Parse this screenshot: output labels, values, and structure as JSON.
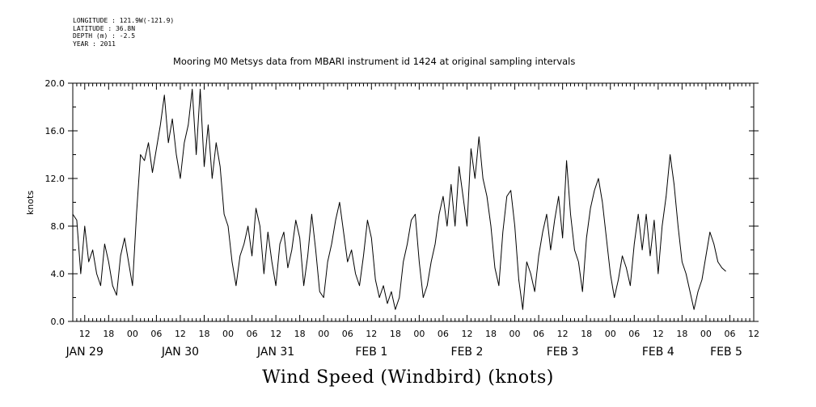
{
  "header": {
    "longitude": "LONGITUDE : 121.9W(-121.9)",
    "latitude": "LATITUDE : 36.8N",
    "depth": "DEPTH (m) : -2.5",
    "year": "YEAR : 2011"
  },
  "chart_data": {
    "type": "line",
    "title": "Mooring M0 Metsys data from MBARI instrument id 1424 at original sampling intervals",
    "xlabel": "Wind Speed (Windbird) (knots)",
    "ylabel": "knots",
    "ylim": [
      0,
      20
    ],
    "yticks": [
      "0.0",
      "4.0",
      "8.0",
      "12.0",
      "16.0",
      "20.0"
    ],
    "xlim_hours": [
      "JAN 29 09:00",
      "FEB 5 12:00"
    ],
    "hour_tick_labels": [
      "12",
      "18",
      "00",
      "06",
      "12",
      "18",
      "00",
      "06",
      "12",
      "18",
      "00",
      "06",
      "12",
      "18",
      "00",
      "06",
      "12",
      "18",
      "00",
      "06",
      "12",
      "18",
      "00",
      "06",
      "12",
      "18",
      "00",
      "06",
      "12",
      "18",
      "00",
      "06"
    ],
    "day_labels": [
      "JAN 29",
      "JAN 30",
      "JAN 31",
      "FEB  1",
      "FEB  2",
      "FEB  3",
      "FEB  4",
      "FEB  5"
    ],
    "grid": false,
    "series": [
      {
        "color": "#000000",
        "points": [
          [
            "JAN 29 09",
            9.0
          ],
          [
            "JAN 29 10",
            8.5
          ],
          [
            "JAN 29 11",
            4.0
          ],
          [
            "JAN 29 12",
            8.0
          ],
          [
            "JAN 29 13",
            5.0
          ],
          [
            "JAN 29 14",
            6.0
          ],
          [
            "JAN 29 15",
            4.0
          ],
          [
            "JAN 29 16",
            3.0
          ],
          [
            "JAN 29 17",
            6.5
          ],
          [
            "JAN 29 18",
            5.0
          ],
          [
            "JAN 29 19",
            3.0
          ],
          [
            "JAN 29 20",
            2.2
          ],
          [
            "JAN 29 21",
            5.5
          ],
          [
            "JAN 29 22",
            7.0
          ],
          [
            "JAN 29 23",
            5.0
          ],
          [
            "JAN 30 00",
            3.0
          ],
          [
            "JAN 30 01",
            9.0
          ],
          [
            "JAN 30 02",
            14.0
          ],
          [
            "JAN 30 03",
            13.5
          ],
          [
            "JAN 30 04",
            15.0
          ],
          [
            "JAN 30 05",
            12.5
          ],
          [
            "JAN 30 06",
            14.5
          ],
          [
            "JAN 30 07",
            16.5
          ],
          [
            "JAN 30 08",
            19.0
          ],
          [
            "JAN 30 09",
            15.0
          ],
          [
            "JAN 30 10",
            17.0
          ],
          [
            "JAN 30 11",
            14.0
          ],
          [
            "JAN 30 12",
            12.0
          ],
          [
            "JAN 30 13",
            15.0
          ],
          [
            "JAN 30 14",
            16.5
          ],
          [
            "JAN 30 15",
            19.5
          ],
          [
            "JAN 30 16",
            14.0
          ],
          [
            "JAN 30 17",
            19.5
          ],
          [
            "JAN 30 18",
            13.0
          ],
          [
            "JAN 30 19",
            16.5
          ],
          [
            "JAN 30 20",
            12.0
          ],
          [
            "JAN 30 21",
            15.0
          ],
          [
            "JAN 30 22",
            13.0
          ],
          [
            "JAN 30 23",
            9.0
          ],
          [
            "JAN 31 00",
            8.0
          ],
          [
            "JAN 31 01",
            5.0
          ],
          [
            "JAN 31 02",
            3.0
          ],
          [
            "JAN 31 03",
            5.5
          ],
          [
            "JAN 31 04",
            6.5
          ],
          [
            "JAN 31 05",
            8.0
          ],
          [
            "JAN 31 06",
            5.5
          ],
          [
            "JAN 31 07",
            9.5
          ],
          [
            "JAN 31 08",
            8.0
          ],
          [
            "JAN 31 09",
            4.0
          ],
          [
            "JAN 31 10",
            7.5
          ],
          [
            "JAN 31 11",
            5.0
          ],
          [
            "JAN 31 12",
            3.0
          ],
          [
            "JAN 31 13",
            6.5
          ],
          [
            "JAN 31 14",
            7.5
          ],
          [
            "JAN 31 15",
            4.5
          ],
          [
            "JAN 31 16",
            6.0
          ],
          [
            "JAN 31 17",
            8.5
          ],
          [
            "JAN 31 18",
            7.0
          ],
          [
            "JAN 31 19",
            3.0
          ],
          [
            "JAN 31 20",
            5.5
          ],
          [
            "JAN 31 21",
            9.0
          ],
          [
            "JAN 31 22",
            6.0
          ],
          [
            "JAN 31 23",
            2.5
          ],
          [
            "FEB 1 00",
            2.0
          ],
          [
            "FEB 1 01",
            5.0
          ],
          [
            "FEB 1 02",
            6.5
          ],
          [
            "FEB 1 03",
            8.5
          ],
          [
            "FEB 1 04",
            10.0
          ],
          [
            "FEB 1 05",
            7.5
          ],
          [
            "FEB 1 06",
            5.0
          ],
          [
            "FEB 1 07",
            6.0
          ],
          [
            "FEB 1 08",
            4.0
          ],
          [
            "FEB 1 09",
            3.0
          ],
          [
            "FEB 1 10",
            5.5
          ],
          [
            "FEB 1 11",
            8.5
          ],
          [
            "FEB 1 12",
            7.0
          ],
          [
            "FEB 1 13",
            3.5
          ],
          [
            "FEB 1 14",
            2.0
          ],
          [
            "FEB 1 15",
            3.0
          ],
          [
            "FEB 1 16",
            1.5
          ],
          [
            "FEB 1 17",
            2.5
          ],
          [
            "FEB 1 18",
            1.0
          ],
          [
            "FEB 1 19",
            2.0
          ],
          [
            "FEB 1 20",
            5.0
          ],
          [
            "FEB 1 21",
            6.5
          ],
          [
            "FEB 1 22",
            8.5
          ],
          [
            "FEB 1 23",
            9.0
          ],
          [
            "FEB 2 00",
            5.0
          ],
          [
            "FEB 2 01",
            2.0
          ],
          [
            "FEB 2 02",
            3.0
          ],
          [
            "FEB 2 03",
            5.0
          ],
          [
            "FEB 2 04",
            6.5
          ],
          [
            "FEB 2 05",
            9.0
          ],
          [
            "FEB 2 06",
            10.5
          ],
          [
            "FEB 2 07",
            8.0
          ],
          [
            "FEB 2 08",
            11.5
          ],
          [
            "FEB 2 09",
            8.0
          ],
          [
            "FEB 2 10",
            13.0
          ],
          [
            "FEB 2 11",
            10.5
          ],
          [
            "FEB 2 12",
            8.0
          ],
          [
            "FEB 2 13",
            14.5
          ],
          [
            "FEB 2 14",
            12.0
          ],
          [
            "FEB 2 15",
            15.5
          ],
          [
            "FEB 2 16",
            12.0
          ],
          [
            "FEB 2 17",
            10.5
          ],
          [
            "FEB 2 18",
            8.0
          ],
          [
            "FEB 2 19",
            4.5
          ],
          [
            "FEB 2 20",
            3.0
          ],
          [
            "FEB 2 21",
            7.5
          ],
          [
            "FEB 2 22",
            10.5
          ],
          [
            "FEB 2 23",
            11.0
          ],
          [
            "FEB 3 00",
            8.0
          ],
          [
            "FEB 3 01",
            3.5
          ],
          [
            "FEB 3 02",
            1.0
          ],
          [
            "FEB 3 03",
            5.0
          ],
          [
            "FEB 3 04",
            4.0
          ],
          [
            "FEB 3 05",
            2.5
          ],
          [
            "FEB 3 06",
            5.5
          ],
          [
            "FEB 3 07",
            7.5
          ],
          [
            "FEB 3 08",
            9.0
          ],
          [
            "FEB 3 09",
            6.0
          ],
          [
            "FEB 3 10",
            8.5
          ],
          [
            "FEB 3 11",
            10.5
          ],
          [
            "FEB 3 12",
            7.0
          ],
          [
            "FEB 3 13",
            13.5
          ],
          [
            "FEB 3 14",
            9.0
          ],
          [
            "FEB 3 15",
            6.0
          ],
          [
            "FEB 3 16",
            5.0
          ],
          [
            "FEB 3 17",
            2.5
          ],
          [
            "FEB 3 18",
            7.0
          ],
          [
            "FEB 3 19",
            9.5
          ],
          [
            "FEB 3 20",
            11.0
          ],
          [
            "FEB 3 21",
            12.0
          ],
          [
            "FEB 3 22",
            10.0
          ],
          [
            "FEB 3 23",
            7.0
          ],
          [
            "FEB 4 00",
            4.0
          ],
          [
            "FEB 4 01",
            2.0
          ],
          [
            "FEB 4 02",
            3.5
          ],
          [
            "FEB 4 03",
            5.5
          ],
          [
            "FEB 4 04",
            4.5
          ],
          [
            "FEB 4 05",
            3.0
          ],
          [
            "FEB 4 06",
            6.5
          ],
          [
            "FEB 4 07",
            9.0
          ],
          [
            "FEB 4 08",
            6.0
          ],
          [
            "FEB 4 09",
            9.0
          ],
          [
            "FEB 4 10",
            5.5
          ],
          [
            "FEB 4 11",
            8.5
          ],
          [
            "FEB 4 12",
            4.0
          ],
          [
            "FEB 4 13",
            8.0
          ],
          [
            "FEB 4 14",
            10.5
          ],
          [
            "FEB 4 15",
            14.0
          ],
          [
            "FEB 4 16",
            11.5
          ],
          [
            "FEB 4 17",
            8.0
          ],
          [
            "FEB 4 18",
            5.0
          ],
          [
            "FEB 4 19",
            4.0
          ],
          [
            "FEB 4 20",
            2.5
          ],
          [
            "FEB 4 21",
            1.0
          ],
          [
            "FEB 4 22",
            2.5
          ],
          [
            "FEB 4 23",
            3.5
          ],
          [
            "FEB 5 00",
            5.5
          ],
          [
            "FEB 5 01",
            7.5
          ],
          [
            "FEB 5 02",
            6.5
          ],
          [
            "FEB 5 03",
            5.0
          ],
          [
            "FEB 5 04",
            4.5
          ],
          [
            "FEB 5 05",
            4.2
          ]
        ]
      }
    ]
  }
}
